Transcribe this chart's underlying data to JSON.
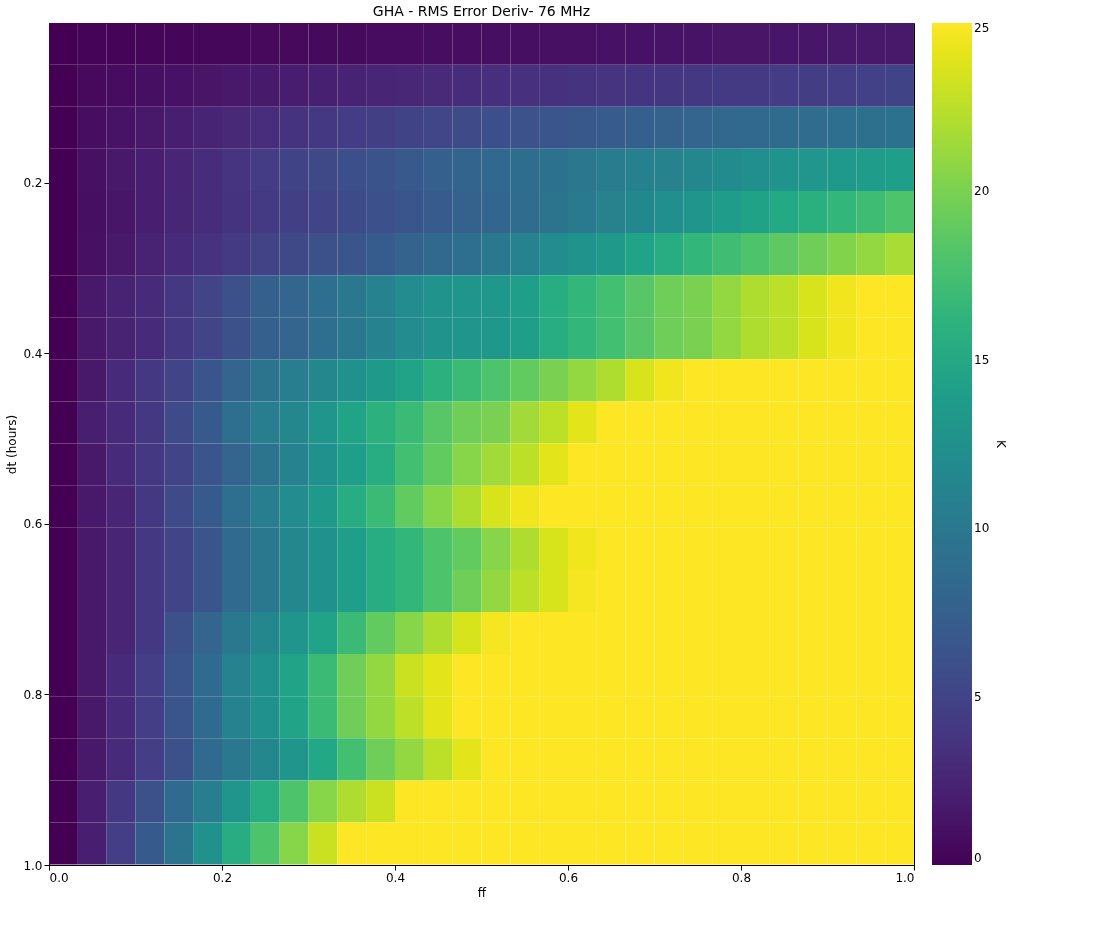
{
  "chart_data": {
    "type": "heatmap",
    "title": "GHA - RMS Error Deriv- 76 MHz",
    "xlabel": "ff",
    "ylabel": "dt (hours)",
    "clabel": "K",
    "x": [
      0.0167,
      0.05,
      0.0833,
      0.1167,
      0.15,
      0.1833,
      0.2167,
      0.25,
      0.2833,
      0.3167,
      0.35,
      0.3833,
      0.4167,
      0.45,
      0.4833,
      0.5167,
      0.55,
      0.5833,
      0.6167,
      0.65,
      0.6833,
      0.7167,
      0.75,
      0.7833,
      0.8167,
      0.85,
      0.8833,
      0.9167,
      0.95,
      0.9833
    ],
    "y": [
      0.0367,
      0.0861,
      0.1354,
      0.1848,
      0.2342,
      0.2836,
      0.333,
      0.3823,
      0.4317,
      0.4811,
      0.5305,
      0.5798,
      0.6292,
      0.6786,
      0.728,
      0.7773,
      0.8267,
      0.8761,
      0.9255,
      0.9748
    ],
    "xlim": [
      0,
      1
    ],
    "ylim": [
      1,
      0.0125
    ],
    "xticks": [
      {
        "value": 0,
        "label": "0.0"
      },
      0.2,
      0.4,
      0.6,
      0.8,
      {
        "value": 1,
        "label": "1.0"
      }
    ],
    "yticks": [
      0.2,
      0.4,
      0.6,
      0.8,
      {
        "value": 1,
        "label": "1.0"
      }
    ],
    "clim": [
      0,
      25
    ],
    "cticks": [
      0,
      5,
      10,
      15,
      20,
      25
    ],
    "cells": [
      [
        0,
        0.2,
        0.2,
        0.3,
        0.3,
        0.4,
        0.4,
        0.5,
        0.5,
        0.6,
        0.6,
        0.7,
        0.7,
        0.8,
        0.8,
        0.9,
        0.9,
        1,
        1,
        1.1,
        1.1,
        1.2,
        1.2,
        1.3,
        1.3,
        1.4,
        1.4,
        1.5,
        1.5,
        1.5
      ],
      [
        0,
        0.5,
        0.7,
        0.9,
        1.1,
        1.3,
        1.5,
        1.7,
        1.9,
        2.1,
        2.3,
        2.5,
        2.7,
        2.9,
        3.1,
        3.3,
        3.4,
        3.5,
        3.6,
        3.7,
        3.8,
        3.9,
        4,
        4.1,
        4.2,
        4.3,
        4.4,
        4.5,
        4.7,
        4.9
      ],
      [
        0,
        0.8,
        1.2,
        1.6,
        2,
        2.4,
        2.8,
        3.2,
        3.6,
        4,
        4.3,
        4.6,
        4.9,
        5.2,
        5.5,
        5.9,
        6.2,
        6.5,
        6.8,
        7.1,
        7.4,
        7.7,
        8,
        8.2,
        8.4,
        8.6,
        8.8,
        9,
        9.2,
        9.4
      ],
      [
        0,
        1,
        1.5,
        2,
        2.5,
        3.1,
        3.7,
        4.3,
        4.9,
        5.4,
        5.9,
        6.4,
        6.9,
        7.4,
        7.9,
        8.4,
        8.9,
        9.4,
        9.9,
        10.3,
        10.7,
        11.1,
        11.5,
        11.9,
        12.3,
        12.7,
        13.1,
        13.4,
        13.7,
        14
      ],
      [
        0,
        0.9,
        1.4,
        2,
        2.6,
        3.1,
        3.6,
        4.1,
        4.6,
        5.1,
        5.6,
        6.1,
        6.6,
        7.1,
        7.6,
        8.1,
        8.8,
        9.5,
        10.2,
        10.9,
        11.6,
        12.3,
        13,
        13.7,
        14.4,
        15.1,
        15.8,
        16.5,
        17.2,
        18
      ],
      [
        0,
        1,
        1.5,
        2.3,
        3,
        3.6,
        4.2,
        4.8,
        5.4,
        6,
        6.6,
        7.2,
        7.8,
        8.4,
        9,
        10,
        11,
        12,
        12.8,
        13.5,
        14.5,
        15.5,
        16.5,
        17.3,
        18,
        18.8,
        19.5,
        20.3,
        21,
        21.8
      ],
      [
        0,
        1.5,
        2.3,
        3,
        4,
        5,
        6,
        7.5,
        8,
        9,
        10,
        11,
        12,
        12.8,
        13,
        13.2,
        14,
        15.5,
        16.5,
        17.5,
        18.5,
        19.5,
        20,
        21,
        22,
        22.5,
        23.5,
        24.5,
        25,
        25
      ],
      [
        0,
        1.5,
        2.3,
        3,
        4,
        5,
        6,
        7.5,
        8,
        9,
        10,
        11,
        12,
        12.8,
        13,
        13.2,
        14,
        15.5,
        16.5,
        17.5,
        18.5,
        19.5,
        20,
        21,
        22,
        22.5,
        23.5,
        24.5,
        25,
        25
      ],
      [
        0,
        1.5,
        3,
        4,
        5,
        6.5,
        8,
        9.5,
        10.5,
        11.5,
        12.5,
        13.5,
        14.5,
        16,
        17,
        18,
        19,
        20,
        21,
        22,
        23.5,
        24.5,
        25,
        25,
        25,
        25,
        25,
        25,
        25,
        25
      ],
      [
        0,
        2,
        3,
        4,
        5.5,
        7,
        9,
        10.5,
        11.5,
        13,
        14.5,
        16,
        17,
        18.5,
        19.5,
        20,
        21.5,
        22.5,
        24,
        25,
        25,
        25,
        25,
        25,
        25,
        25,
        25,
        25,
        25,
        25
      ],
      [
        0,
        1.5,
        3,
        4,
        5,
        6.5,
        8,
        9.5,
        11,
        12.5,
        14,
        15.5,
        17.5,
        19,
        20.5,
        21.5,
        22.5,
        24,
        25,
        25,
        25,
        25,
        25,
        25,
        25,
        25,
        25,
        25,
        25,
        25
      ],
      [
        0,
        1.5,
        2.5,
        4,
        5.5,
        7,
        9,
        10.5,
        12,
        13.5,
        15.5,
        17,
        19,
        20.5,
        22,
        23.5,
        24.5,
        25,
        25,
        25,
        25,
        25,
        25,
        25,
        25,
        25,
        25,
        25,
        25,
        25
      ],
      [
        0,
        1.5,
        2.5,
        4,
        5,
        6.5,
        8.5,
        10,
        11.5,
        12.5,
        14,
        15.5,
        16.5,
        18,
        19,
        20.5,
        22,
        23.5,
        24.5,
        25,
        25,
        25,
        25,
        25,
        25,
        25,
        25,
        25,
        25,
        25
      ],
      [
        0,
        1.5,
        2.5,
        4,
        5,
        6.5,
        8.5,
        10,
        11.5,
        12.5,
        14,
        15.5,
        16.5,
        18,
        19.5,
        21,
        22.5,
        23.5,
        24.7,
        25,
        25,
        25,
        25,
        25,
        25,
        25,
        25,
        25,
        25,
        25
      ],
      [
        0,
        1.5,
        2.5,
        4,
        6,
        8,
        10,
        11.5,
        13,
        14.5,
        17,
        19,
        20.5,
        22,
        23.5,
        24.7,
        25,
        25,
        25,
        25,
        25,
        25,
        25,
        25,
        25,
        25,
        25,
        25,
        25,
        25
      ],
      [
        0,
        1.5,
        3,
        4.5,
        6.5,
        8.5,
        11,
        12.5,
        14.5,
        17,
        19.5,
        21,
        23,
        24,
        25,
        25,
        25,
        25,
        25,
        25,
        25,
        25,
        25,
        25,
        25,
        25,
        25,
        25,
        25,
        25
      ],
      [
        0,
        1.5,
        3,
        4.5,
        6.5,
        8.5,
        11,
        12.5,
        14.5,
        17,
        19.5,
        21,
        22.5,
        24,
        25,
        25,
        25,
        25,
        25,
        25,
        25,
        25,
        25,
        25,
        25,
        25,
        25,
        25,
        25,
        25
      ],
      [
        0,
        1.5,
        3,
        4.5,
        6,
        8.5,
        10,
        11.5,
        13,
        15,
        17.5,
        19.5,
        21,
        22.5,
        24,
        25,
        25,
        25,
        25,
        25,
        25,
        25,
        25,
        25,
        25,
        25,
        25,
        25,
        25,
        25
      ],
      [
        0,
        2,
        4,
        6,
        8.5,
        10.5,
        13,
        15.5,
        18,
        20.5,
        22,
        23,
        25,
        25,
        25,
        25,
        25,
        25,
        25,
        25,
        25,
        25,
        25,
        25,
        25,
        25,
        25,
        25,
        25,
        25
      ],
      [
        0,
        2,
        4.5,
        7,
        9.5,
        12.5,
        15.5,
        18,
        20.5,
        23,
        25,
        25,
        25,
        25,
        25,
        25,
        25,
        25,
        25,
        25,
        25,
        25,
        25,
        25,
        25,
        25,
        25,
        25,
        25,
        25
      ]
    ]
  }
}
